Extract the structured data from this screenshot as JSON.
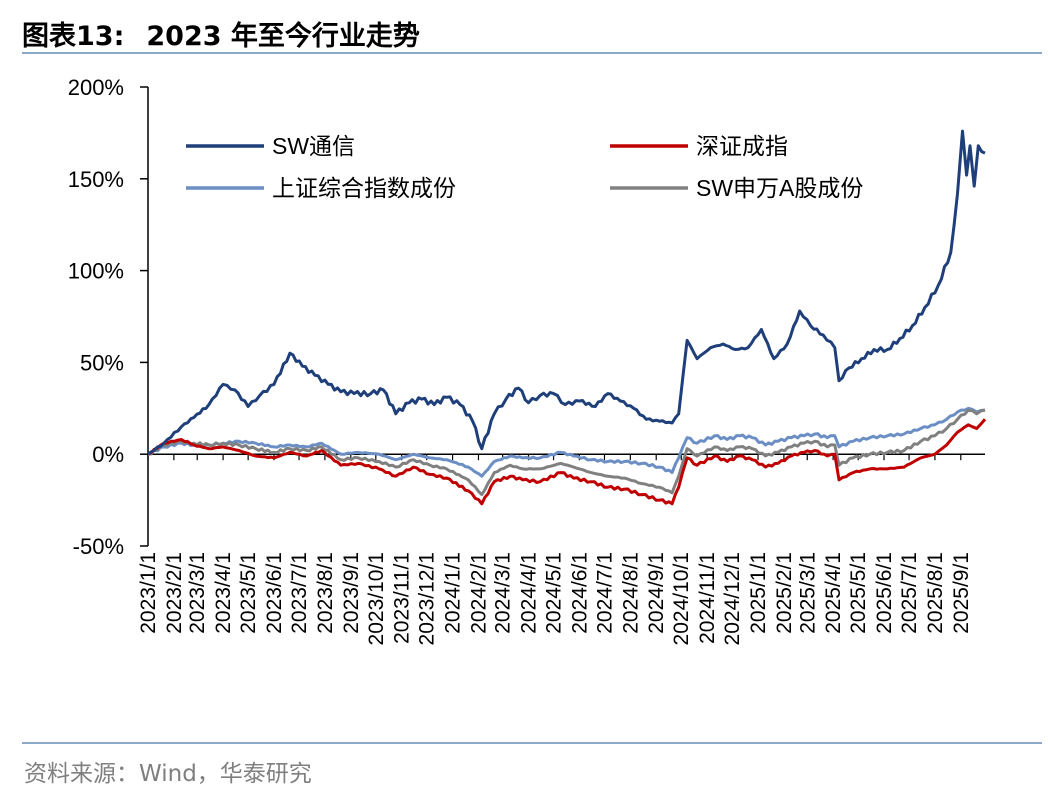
{
  "title": {
    "prefix": "图表13:",
    "text": "2023 年至今行业走势"
  },
  "source": "资料来源：Wind，华泰研究",
  "colors": {
    "axis": "#000000",
    "rule": "#8ea9c8",
    "sw_telecom": "#1f3f7a",
    "szse_component": "#c00000",
    "sse_composite": "#6b8fc4",
    "sw_a_share": "#808080"
  },
  "chart_data": {
    "type": "line",
    "title": "",
    "xlabel": "",
    "ylabel": "",
    "ylim": [
      -50,
      200
    ],
    "yticks": [
      -50,
      0,
      50,
      100,
      150,
      200
    ],
    "ytick_labels": [
      "-50%",
      "0%",
      "50%",
      "100%",
      "150%",
      "200%"
    ],
    "x_tick_labels": [
      "2023/1/1",
      "2023/2/1",
      "2023/3/1",
      "2023/4/1",
      "2023/5/1",
      "2023/6/1",
      "2023/7/1",
      "2023/8/1",
      "2023/9/1",
      "2023/10/1",
      "2023/11/1",
      "2023/12/1",
      "2024/1/1",
      "2024/2/1",
      "2024/3/1",
      "2024/4/1",
      "2024/5/1",
      "2024/6/1",
      "2024/7/1",
      "2024/8/1",
      "2024/9/1",
      "2024/10/1",
      "2024/11/1",
      "2024/12/1",
      "2025/1/1",
      "2025/2/1",
      "2025/3/1",
      "2025/4/1",
      "2025/5/1",
      "2025/6/1",
      "2025/7/1",
      "2025/8/1",
      "2025/9/1"
    ],
    "x_range": [
      "2023/1/1",
      "2025/9/30"
    ],
    "grid": false,
    "legend_position": "top",
    "series": [
      {
        "name": "SW通信",
        "color": "#1f3f7a",
        "points": [
          [
            "2023/1/1",
            0
          ],
          [
            "2023/1/20",
            6
          ],
          [
            "2023/2/10",
            15
          ],
          [
            "2023/2/25",
            20
          ],
          [
            "2023/3/15",
            27
          ],
          [
            "2023/4/1",
            38
          ],
          [
            "2023/4/15",
            35
          ],
          [
            "2023/5/1",
            26
          ],
          [
            "2023/5/15",
            32
          ],
          [
            "2023/6/1",
            38
          ],
          [
            "2023/6/20",
            55
          ],
          [
            "2023/7/5",
            48
          ],
          [
            "2023/7/20",
            43
          ],
          [
            "2023/8/5",
            38
          ],
          [
            "2023/8/20",
            34
          ],
          [
            "2023/9/5",
            33
          ],
          [
            "2023/9/25",
            33
          ],
          [
            "2023/10/10",
            35
          ],
          [
            "2023/10/25",
            22
          ],
          [
            "2023/11/10",
            28
          ],
          [
            "2023/11/25",
            30
          ],
          [
            "2023/12/10",
            27
          ],
          [
            "2023/12/25",
            31
          ],
          [
            "2024/1/10",
            27
          ],
          [
            "2024/1/25",
            18
          ],
          [
            "2024/2/5",
            3
          ],
          [
            "2024/2/20",
            22
          ],
          [
            "2024/3/5",
            30
          ],
          [
            "2024/3/20",
            36
          ],
          [
            "2024/4/1",
            28
          ],
          [
            "2024/4/15",
            32
          ],
          [
            "2024/5/1",
            33
          ],
          [
            "2024/5/15",
            27
          ],
          [
            "2024/6/1",
            29
          ],
          [
            "2024/6/20",
            26
          ],
          [
            "2024/7/5",
            33
          ],
          [
            "2024/7/20",
            29
          ],
          [
            "2024/8/5",
            25
          ],
          [
            "2024/8/20",
            19
          ],
          [
            "2024/9/5",
            18
          ],
          [
            "2024/9/20",
            17
          ],
          [
            "2024/9/28",
            22
          ],
          [
            "2024/10/8",
            62
          ],
          [
            "2024/10/20",
            52
          ],
          [
            "2024/11/5",
            58
          ],
          [
            "2024/11/20",
            60
          ],
          [
            "2024/12/5",
            57
          ],
          [
            "2024/12/20",
            58
          ],
          [
            "2025/1/5",
            68
          ],
          [
            "2025/1/20",
            52
          ],
          [
            "2025/2/5",
            60
          ],
          [
            "2025/2/20",
            78
          ],
          [
            "2025/3/5",
            70
          ],
          [
            "2025/3/20",
            65
          ],
          [
            "2025/4/3",
            58
          ],
          [
            "2025/4/8",
            40
          ],
          [
            "2025/4/20",
            47
          ],
          [
            "2025/5/5",
            52
          ],
          [
            "2025/5/20",
            57
          ],
          [
            "2025/6/5",
            57
          ],
          [
            "2025/6/20",
            63
          ],
          [
            "2025/7/5",
            70
          ],
          [
            "2025/7/20",
            80
          ],
          [
            "2025/8/5",
            92
          ],
          [
            "2025/8/20",
            110
          ],
          [
            "2025/8/28",
            142
          ],
          [
            "2025/9/3",
            176
          ],
          [
            "2025/9/8",
            152
          ],
          [
            "2025/9/12",
            168
          ],
          [
            "2025/9/17",
            146
          ],
          [
            "2025/9/22",
            168
          ],
          [
            "2025/9/30",
            164
          ]
        ]
      },
      {
        "name": "深证成指",
        "color": "#c00000",
        "points": [
          [
            "2023/1/1",
            0
          ],
          [
            "2023/1/20",
            6
          ],
          [
            "2023/2/10",
            8
          ],
          [
            "2023/2/25",
            5
          ],
          [
            "2023/3/15",
            3
          ],
          [
            "2023/4/1",
            4
          ],
          [
            "2023/4/20",
            2
          ],
          [
            "2023/5/10",
            -1
          ],
          [
            "2023/6/1",
            -2
          ],
          [
            "2023/6/20",
            1
          ],
          [
            "2023/7/10",
            -1
          ],
          [
            "2023/7/28",
            2
          ],
          [
            "2023/8/20",
            -6
          ],
          [
            "2023/9/10",
            -5
          ],
          [
            "2023/10/5",
            -8
          ],
          [
            "2023/10/25",
            -12
          ],
          [
            "2023/11/15",
            -7
          ],
          [
            "2023/12/5",
            -11
          ],
          [
            "2023/12/25",
            -13
          ],
          [
            "2024/1/20",
            -20
          ],
          [
            "2024/2/5",
            -27
          ],
          [
            "2024/2/20",
            -15
          ],
          [
            "2024/3/10",
            -12
          ],
          [
            "2024/3/25",
            -14
          ],
          [
            "2024/4/15",
            -15
          ],
          [
            "2024/5/10",
            -10
          ],
          [
            "2024/5/25",
            -13
          ],
          [
            "2024/6/15",
            -15
          ],
          [
            "2024/7/5",
            -18
          ],
          [
            "2024/7/25",
            -19
          ],
          [
            "2024/8/15",
            -22
          ],
          [
            "2024/9/5",
            -25
          ],
          [
            "2024/9/20",
            -27
          ],
          [
            "2024/9/28",
            -18
          ],
          [
            "2024/10/8",
            -2
          ],
          [
            "2024/10/20",
            -6
          ],
          [
            "2024/11/10",
            -1
          ],
          [
            "2024/11/25",
            -4
          ],
          [
            "2024/12/10",
            -1
          ],
          [
            "2024/12/25",
            -3
          ],
          [
            "2025/1/10",
            -7
          ],
          [
            "2025/1/25",
            -5
          ],
          [
            "2025/2/10",
            -1
          ],
          [
            "2025/2/25",
            1
          ],
          [
            "2025/3/10",
            2
          ],
          [
            "2025/3/25",
            -1
          ],
          [
            "2025/4/3",
            0
          ],
          [
            "2025/4/8",
            -14
          ],
          [
            "2025/4/25",
            -10
          ],
          [
            "2025/5/15",
            -8
          ],
          [
            "2025/6/5",
            -8
          ],
          [
            "2025/6/25",
            -7
          ],
          [
            "2025/7/15",
            -2
          ],
          [
            "2025/8/1",
            0
          ],
          [
            "2025/8/15",
            5
          ],
          [
            "2025/8/28",
            12
          ],
          [
            "2025/9/10",
            16
          ],
          [
            "2025/9/20",
            14
          ],
          [
            "2025/9/30",
            19
          ]
        ]
      },
      {
        "name": "上证综合指数成份",
        "color": "#6b8fc4",
        "points": [
          [
            "2023/1/1",
            0
          ],
          [
            "2023/1/20",
            4
          ],
          [
            "2023/2/10",
            6
          ],
          [
            "2023/2/25",
            5
          ],
          [
            "2023/3/15",
            5
          ],
          [
            "2023/4/1",
            6
          ],
          [
            "2023/4/20",
            7
          ],
          [
            "2023/5/10",
            6
          ],
          [
            "2023/6/1",
            4
          ],
          [
            "2023/6/20",
            5
          ],
          [
            "2023/7/10",
            4
          ],
          [
            "2023/7/28",
            6
          ],
          [
            "2023/8/20",
            0
          ],
          [
            "2023/9/10",
            1
          ],
          [
            "2023/10/5",
            0
          ],
          [
            "2023/10/25",
            -3
          ],
          [
            "2023/11/15",
            0
          ],
          [
            "2023/12/5",
            -2
          ],
          [
            "2023/12/25",
            -3
          ],
          [
            "2024/1/20",
            -7
          ],
          [
            "2024/2/5",
            -12
          ],
          [
            "2024/2/20",
            -4
          ],
          [
            "2024/3/10",
            -1
          ],
          [
            "2024/3/25",
            -2
          ],
          [
            "2024/4/15",
            -2
          ],
          [
            "2024/5/10",
            1
          ],
          [
            "2024/5/25",
            -1
          ],
          [
            "2024/6/15",
            -3
          ],
          [
            "2024/7/5",
            -4
          ],
          [
            "2024/7/25",
            -4
          ],
          [
            "2024/8/15",
            -5
          ],
          [
            "2024/9/5",
            -7
          ],
          [
            "2024/9/20",
            -10
          ],
          [
            "2024/9/28",
            -2
          ],
          [
            "2024/10/8",
            9
          ],
          [
            "2024/10/20",
            6
          ],
          [
            "2024/11/10",
            10
          ],
          [
            "2024/11/25",
            8
          ],
          [
            "2024/12/10",
            10
          ],
          [
            "2024/12/25",
            9
          ],
          [
            "2025/1/10",
            5
          ],
          [
            "2025/1/25",
            7
          ],
          [
            "2025/2/10",
            9
          ],
          [
            "2025/2/25",
            10
          ],
          [
            "2025/3/10",
            11
          ],
          [
            "2025/3/25",
            9
          ],
          [
            "2025/4/3",
            10
          ],
          [
            "2025/4/8",
            4
          ],
          [
            "2025/4/25",
            7
          ],
          [
            "2025/5/15",
            9
          ],
          [
            "2025/6/5",
            10
          ],
          [
            "2025/6/25",
            11
          ],
          [
            "2025/7/15",
            14
          ],
          [
            "2025/8/1",
            16
          ],
          [
            "2025/8/15",
            19
          ],
          [
            "2025/8/28",
            23
          ],
          [
            "2025/9/10",
            25
          ],
          [
            "2025/9/20",
            23
          ],
          [
            "2025/9/30",
            24
          ]
        ]
      },
      {
        "name": "SW申万A股成份",
        "color": "#808080",
        "points": [
          [
            "2023/1/1",
            0
          ],
          [
            "2023/1/20",
            5
          ],
          [
            "2023/2/10",
            7
          ],
          [
            "2023/2/25",
            6
          ],
          [
            "2023/3/15",
            5
          ],
          [
            "2023/4/1",
            6
          ],
          [
            "2023/4/20",
            5
          ],
          [
            "2023/5/10",
            3
          ],
          [
            "2023/6/1",
            1
          ],
          [
            "2023/6/20",
            3
          ],
          [
            "2023/7/10",
            2
          ],
          [
            "2023/7/28",
            4
          ],
          [
            "2023/8/20",
            -3
          ],
          [
            "2023/9/10",
            -2
          ],
          [
            "2023/10/5",
            -4
          ],
          [
            "2023/10/25",
            -7
          ],
          [
            "2023/11/15",
            -3
          ],
          [
            "2023/12/5",
            -6
          ],
          [
            "2023/12/25",
            -8
          ],
          [
            "2024/1/20",
            -14
          ],
          [
            "2024/2/5",
            -22
          ],
          [
            "2024/2/20",
            -10
          ],
          [
            "2024/3/10",
            -6
          ],
          [
            "2024/3/25",
            -8
          ],
          [
            "2024/4/15",
            -8
          ],
          [
            "2024/5/10",
            -5
          ],
          [
            "2024/5/25",
            -7
          ],
          [
            "2024/6/15",
            -10
          ],
          [
            "2024/7/5",
            -12
          ],
          [
            "2024/7/25",
            -13
          ],
          [
            "2024/8/15",
            -16
          ],
          [
            "2024/9/5",
            -18
          ],
          [
            "2024/9/20",
            -21
          ],
          [
            "2024/9/28",
            -12
          ],
          [
            "2024/10/8",
            3
          ],
          [
            "2024/10/20",
            -1
          ],
          [
            "2024/11/10",
            4
          ],
          [
            "2024/11/25",
            2
          ],
          [
            "2024/12/10",
            4
          ],
          [
            "2024/12/25",
            3
          ],
          [
            "2025/1/10",
            -1
          ],
          [
            "2025/1/25",
            1
          ],
          [
            "2025/2/10",
            4
          ],
          [
            "2025/2/25",
            6
          ],
          [
            "2025/3/10",
            7
          ],
          [
            "2025/3/25",
            4
          ],
          [
            "2025/4/3",
            5
          ],
          [
            "2025/4/8",
            -6
          ],
          [
            "2025/4/25",
            -2
          ],
          [
            "2025/5/15",
            0
          ],
          [
            "2025/6/5",
            1
          ],
          [
            "2025/6/25",
            2
          ],
          [
            "2025/7/15",
            7
          ],
          [
            "2025/8/1",
            10
          ],
          [
            "2025/8/15",
            14
          ],
          [
            "2025/8/28",
            19
          ],
          [
            "2025/9/10",
            24
          ],
          [
            "2025/9/20",
            22
          ],
          [
            "2025/9/30",
            24
          ]
        ]
      }
    ]
  }
}
